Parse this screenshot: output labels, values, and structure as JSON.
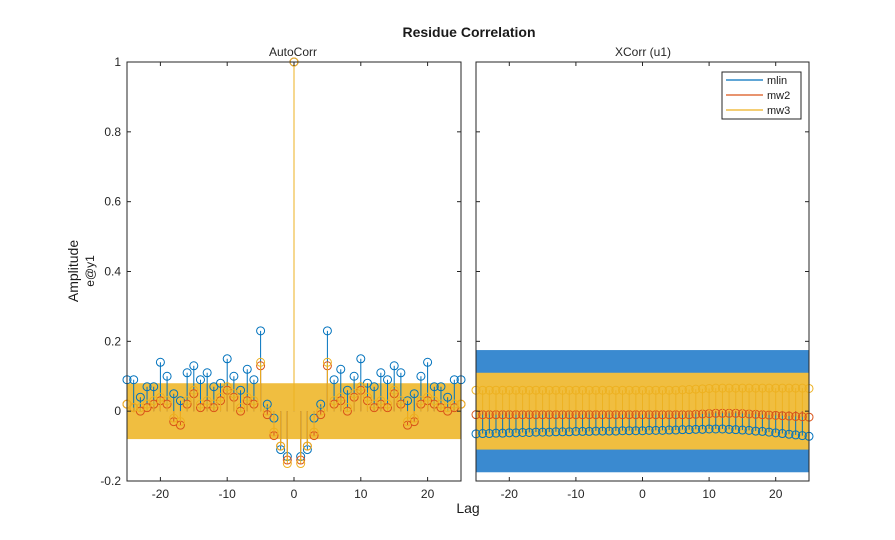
{
  "figure": {
    "title": "Residue Correlation",
    "xlabel": "Lag",
    "ylabel": "Amplitude",
    "ylabel2": "e@y1"
  },
  "colors": {
    "mlin": "#0072BD",
    "mw2": "#D95319",
    "mw3": "#EDB120",
    "band_mlin": "#3A8AD0",
    "band_mw3": "#F0BE40",
    "axis": "#262626"
  },
  "chart_data": [
    {
      "type": "stem",
      "title": "AutoCorr",
      "xlabel": "Lag",
      "ylabel": "Amplitude",
      "xlim": [
        -25,
        25
      ],
      "ylim": [
        -0.2,
        1
      ],
      "xticks": [
        -20,
        -10,
        0,
        10,
        20
      ],
      "yticks": [
        -0.2,
        0,
        0.2,
        0.4,
        0.6,
        0.8,
        1
      ],
      "ytick_labels": [
        "-0.2",
        "0",
        "0.2",
        "0.4",
        "0.6",
        "0.8",
        "1"
      ],
      "x": [
        -25,
        -24,
        -23,
        -22,
        -21,
        -20,
        -19,
        -18,
        -17,
        -16,
        -15,
        -14,
        -13,
        -12,
        -11,
        -10,
        -9,
        -8,
        -7,
        -6,
        -5,
        -4,
        -3,
        -2,
        -1,
        0,
        1,
        2,
        3,
        4,
        5,
        6,
        7,
        8,
        9,
        10,
        11,
        12,
        13,
        14,
        15,
        16,
        17,
        18,
        19,
        20,
        21,
        22,
        23,
        24,
        25
      ],
      "series": [
        {
          "name": "mlin",
          "values": [
            0.09,
            0.09,
            0.04,
            0.07,
            0.07,
            0.14,
            0.1,
            0.05,
            0.03,
            0.11,
            0.13,
            0.09,
            0.11,
            0.07,
            0.08,
            0.15,
            0.1,
            0.06,
            0.12,
            0.09,
            0.23,
            0.02,
            -0.02,
            -0.11,
            -0.13,
            1,
            -0.13,
            -0.11,
            -0.02,
            0.02,
            0.23,
            0.09,
            0.12,
            0.06,
            0.1,
            0.15,
            0.08,
            0.07,
            0.11,
            0.09,
            0.13,
            0.11,
            0.03,
            0.05,
            0.1,
            0.14,
            0.07,
            0.07,
            0.04,
            0.09,
            0.09
          ]
        },
        {
          "name": "mw2",
          "values": [
            0.02,
            0.01,
            0.0,
            0.01,
            0.02,
            0.03,
            0.02,
            -0.03,
            -0.04,
            0.02,
            0.05,
            0.01,
            0.02,
            0.01,
            0.03,
            0.06,
            0.04,
            0.0,
            0.03,
            0.02,
            0.13,
            -0.01,
            -0.07,
            -0.1,
            -0.14,
            1,
            -0.14,
            -0.1,
            -0.07,
            -0.01,
            0.13,
            0.02,
            0.03,
            0.0,
            0.04,
            0.06,
            0.03,
            0.01,
            0.02,
            0.01,
            0.05,
            0.02,
            -0.04,
            -0.03,
            0.02,
            0.03,
            0.02,
            0.01,
            0.0,
            0.01,
            0.02
          ]
        },
        {
          "name": "mw3",
          "values": [
            0.02,
            0.01,
            0.01,
            0.02,
            0.03,
            0.04,
            0.03,
            -0.02,
            -0.03,
            0.03,
            0.06,
            0.02,
            0.03,
            0.02,
            0.04,
            0.07,
            0.05,
            0.01,
            0.04,
            0.03,
            0.14,
            0.0,
            -0.06,
            -0.1,
            -0.15,
            1,
            -0.15,
            -0.1,
            -0.06,
            0.0,
            0.14,
            0.03,
            0.04,
            0.01,
            0.05,
            0.07,
            0.04,
            0.02,
            0.03,
            0.02,
            0.06,
            0.03,
            -0.03,
            -0.02,
            0.03,
            0.04,
            0.03,
            0.02,
            0.01,
            0.02,
            0.02
          ]
        }
      ],
      "confidence_band": [
        {
          "name": "mw3",
          "ylim": [
            -0.08,
            0.08
          ]
        }
      ]
    },
    {
      "type": "stem",
      "title": "XCorr (u1)",
      "xlabel": "Lag",
      "xlim": [
        -25,
        25
      ],
      "ylim": [
        -0.2,
        1
      ],
      "xticks": [
        -20,
        -10,
        0,
        10,
        20
      ],
      "x": [
        -25,
        -24,
        -23,
        -22,
        -21,
        -20,
        -19,
        -18,
        -17,
        -16,
        -15,
        -14,
        -13,
        -12,
        -11,
        -10,
        -9,
        -8,
        -7,
        -6,
        -5,
        -4,
        -3,
        -2,
        -1,
        0,
        1,
        2,
        3,
        4,
        5,
        6,
        7,
        8,
        9,
        10,
        11,
        12,
        13,
        14,
        15,
        16,
        17,
        18,
        19,
        20,
        21,
        22,
        23,
        24,
        25
      ],
      "series": [
        {
          "name": "mlin",
          "values": [
            -0.065,
            -0.064,
            -0.064,
            -0.063,
            -0.063,
            -0.062,
            -0.062,
            -0.061,
            -0.061,
            -0.06,
            -0.06,
            -0.06,
            -0.059,
            -0.059,
            -0.059,
            -0.058,
            -0.058,
            -0.058,
            -0.057,
            -0.057,
            -0.057,
            -0.057,
            -0.056,
            -0.056,
            -0.056,
            -0.056,
            -0.055,
            -0.055,
            -0.055,
            -0.054,
            -0.054,
            -0.053,
            -0.053,
            -0.052,
            -0.052,
            -0.051,
            -0.051,
            -0.051,
            -0.052,
            -0.053,
            -0.054,
            -0.055,
            -0.057,
            -0.058,
            -0.06,
            -0.062,
            -0.064,
            -0.066,
            -0.068,
            -0.07,
            -0.072
          ]
        },
        {
          "name": "mw2",
          "values": [
            -0.01,
            -0.01,
            -0.01,
            -0.01,
            -0.01,
            -0.01,
            -0.01,
            -0.01,
            -0.01,
            -0.01,
            -0.01,
            -0.01,
            -0.01,
            -0.01,
            -0.01,
            -0.01,
            -0.01,
            -0.01,
            -0.01,
            -0.01,
            -0.01,
            -0.01,
            -0.01,
            -0.01,
            -0.01,
            -0.01,
            -0.01,
            -0.01,
            -0.01,
            -0.01,
            -0.01,
            -0.01,
            -0.01,
            -0.009,
            -0.008,
            -0.007,
            -0.006,
            -0.006,
            -0.006,
            -0.006,
            -0.007,
            -0.008,
            -0.009,
            -0.01,
            -0.011,
            -0.012,
            -0.013,
            -0.014,
            -0.015,
            -0.016,
            -0.017
          ]
        },
        {
          "name": "mw3",
          "values": [
            0.06,
            0.06,
            0.06,
            0.06,
            0.06,
            0.06,
            0.06,
            0.06,
            0.06,
            0.06,
            0.06,
            0.06,
            0.06,
            0.06,
            0.06,
            0.06,
            0.06,
            0.06,
            0.06,
            0.06,
            0.06,
            0.06,
            0.06,
            0.06,
            0.06,
            0.06,
            0.06,
            0.06,
            0.06,
            0.06,
            0.06,
            0.061,
            0.062,
            0.063,
            0.064,
            0.065,
            0.066,
            0.066,
            0.066,
            0.066,
            0.066,
            0.066,
            0.066,
            0.066,
            0.066,
            0.066,
            0.066,
            0.066,
            0.066,
            0.066,
            0.065
          ]
        }
      ],
      "confidence_band": [
        {
          "name": "mlin",
          "ylim": [
            -0.175,
            0.175
          ]
        },
        {
          "name": "mw3",
          "ylim": [
            -0.11,
            0.11
          ]
        }
      ],
      "legend": {
        "placement": "top-right",
        "entries": [
          "mlin",
          "mw2",
          "mw3"
        ]
      }
    }
  ]
}
